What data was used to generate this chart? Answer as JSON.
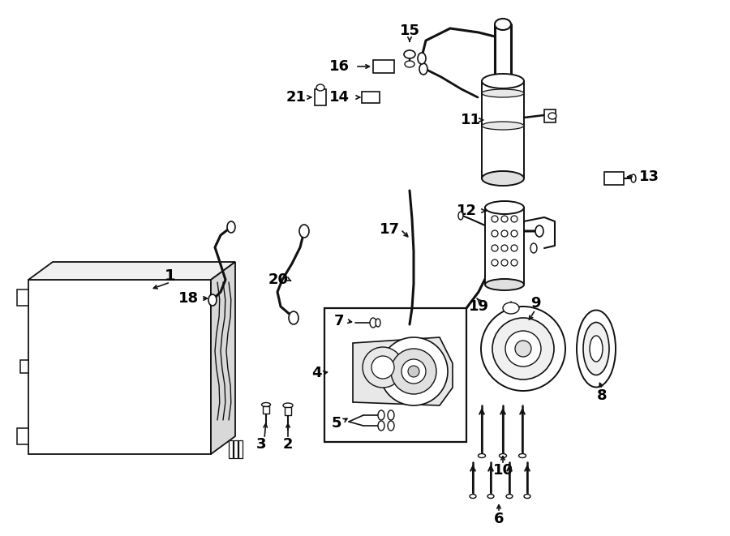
{
  "bg_color": "#ffffff",
  "line_color": "#111111",
  "text_color": "#000000",
  "fig_width": 9.0,
  "fig_height": 6.61,
  "dpi": 100
}
